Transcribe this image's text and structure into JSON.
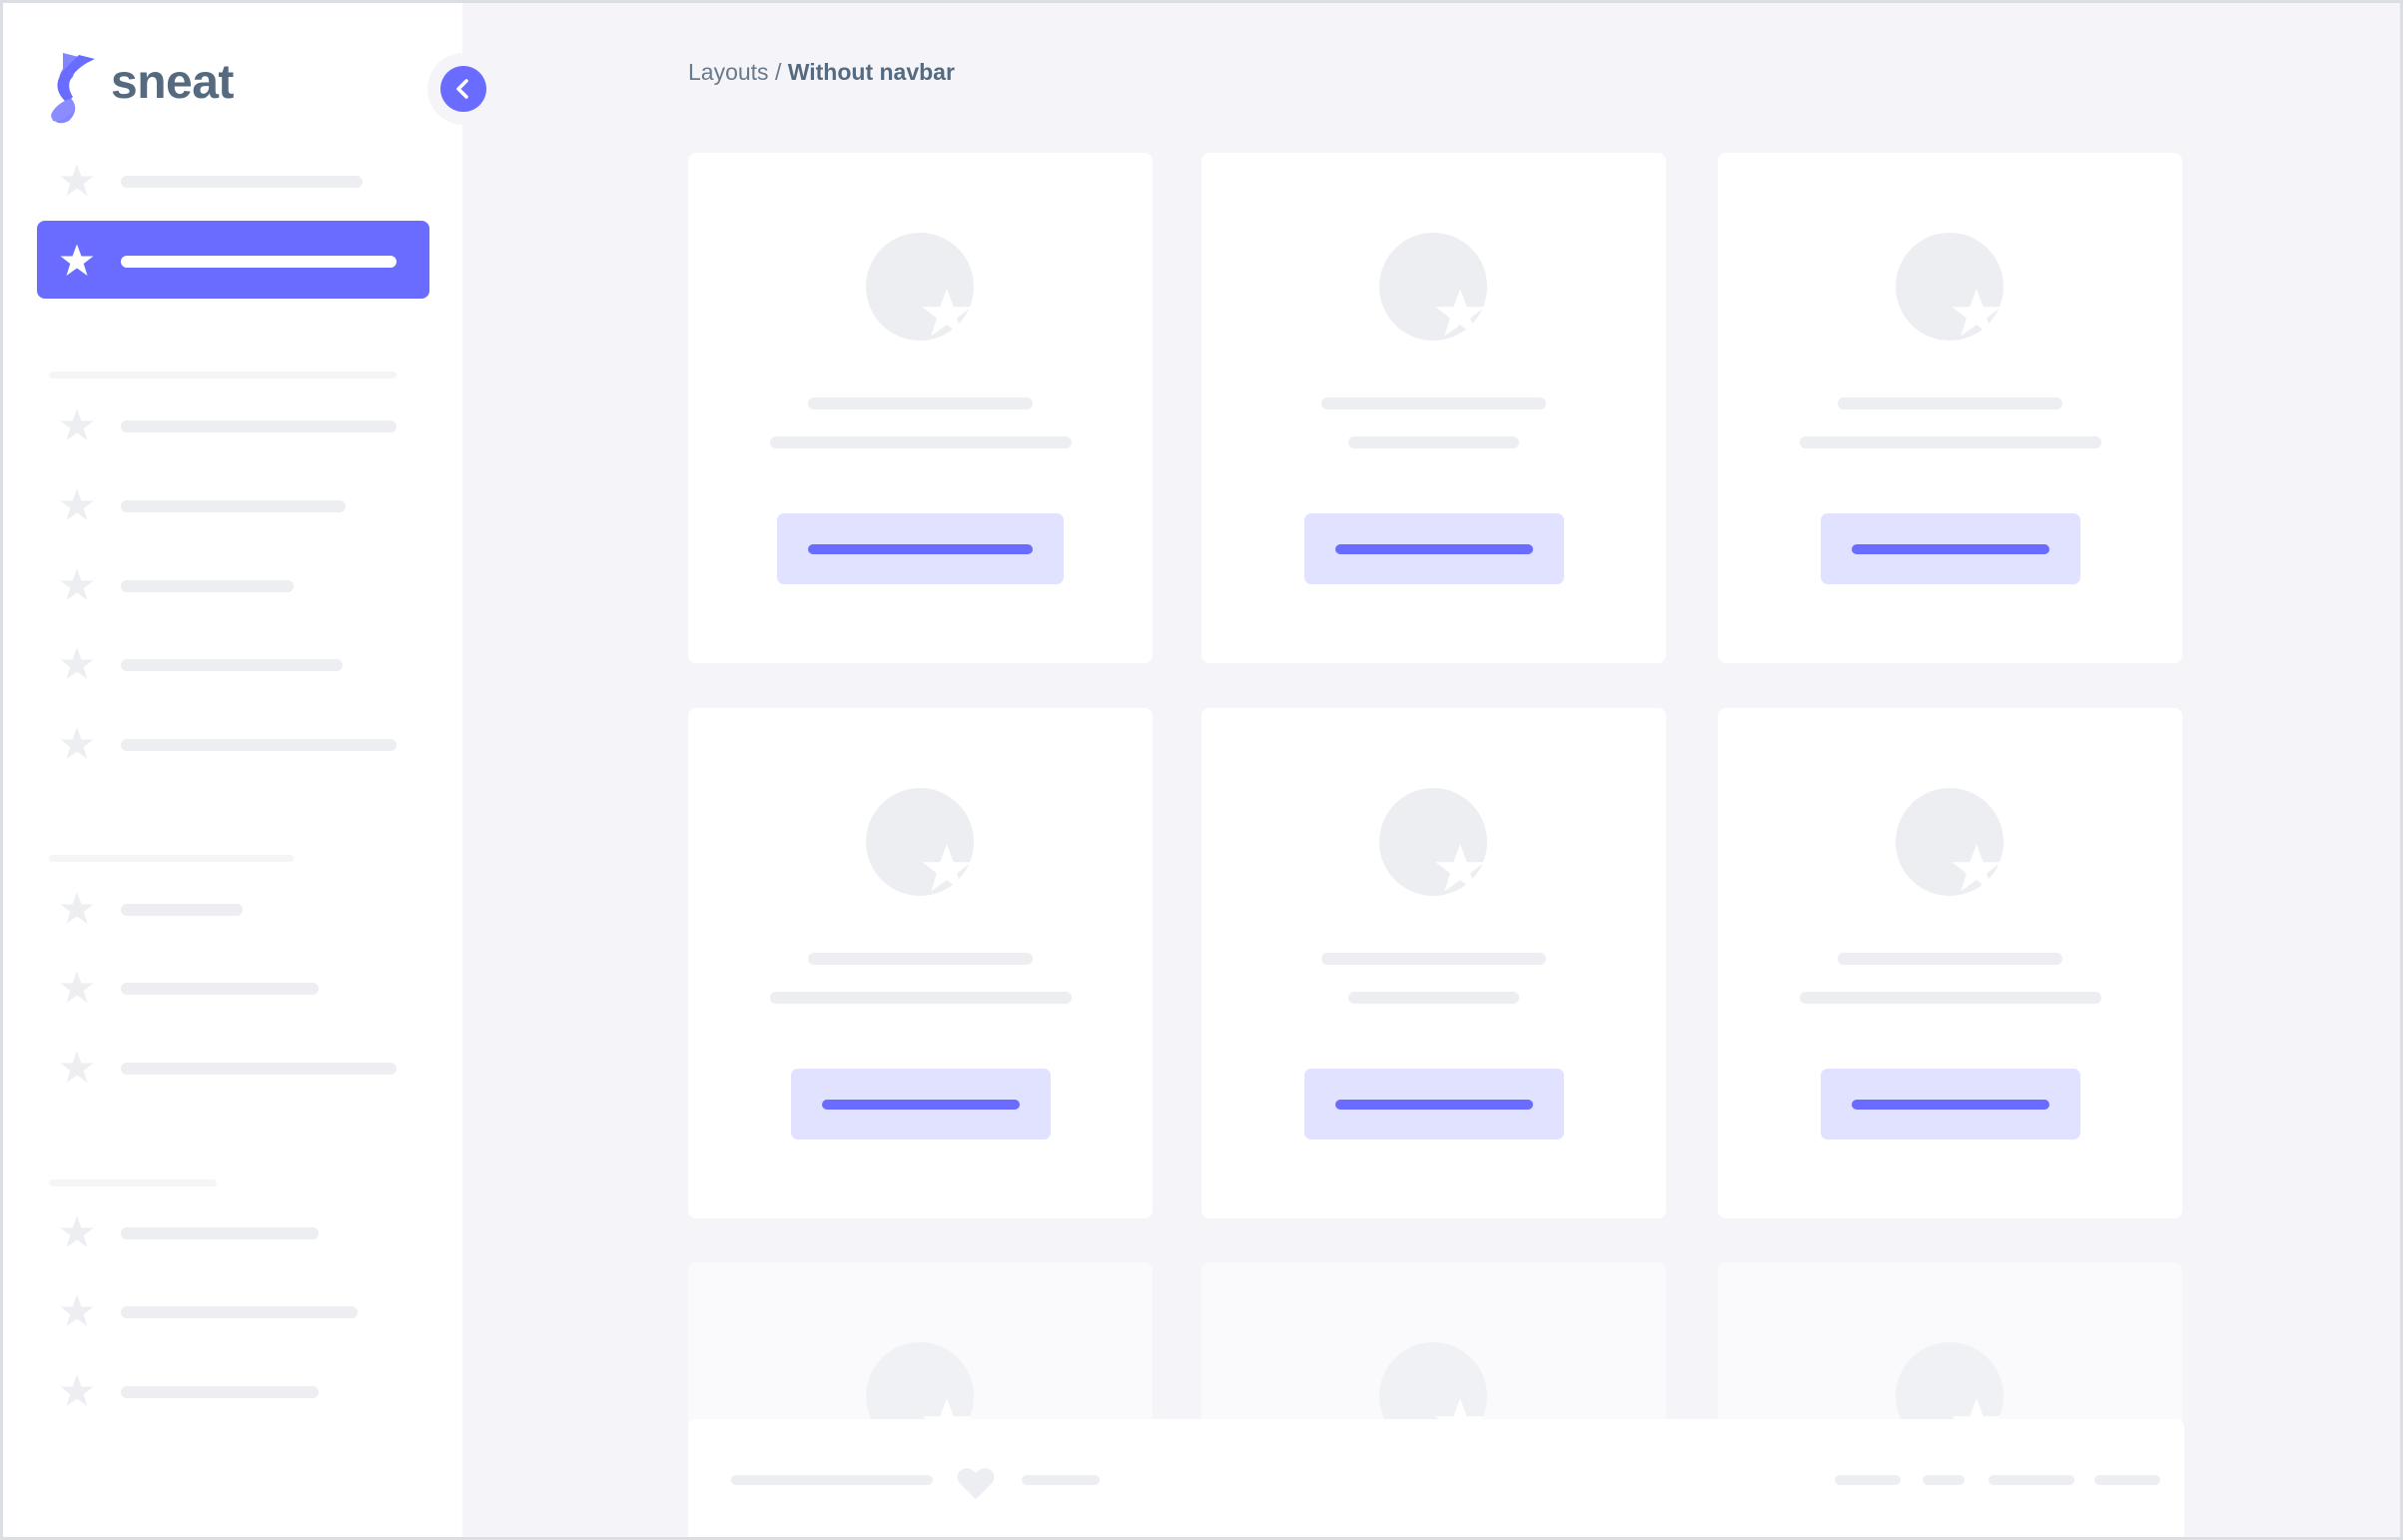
{
  "brand": {
    "name": "sneat",
    "accent": "#696cff",
    "text_color": "#566a7f"
  },
  "breadcrumb": {
    "parent": "Layouts",
    "separator": " / ",
    "current": "Without navbar"
  },
  "sidebar": {
    "collapse_icon": "chevron-left-icon",
    "item_icon": "star-icon",
    "active_index": 1
  },
  "footer": {
    "icon": "heart-icon"
  },
  "colors": {
    "skeleton": "#eceef1",
    "background": "#f5f5f9",
    "button_bg": "#e1e2ff"
  }
}
